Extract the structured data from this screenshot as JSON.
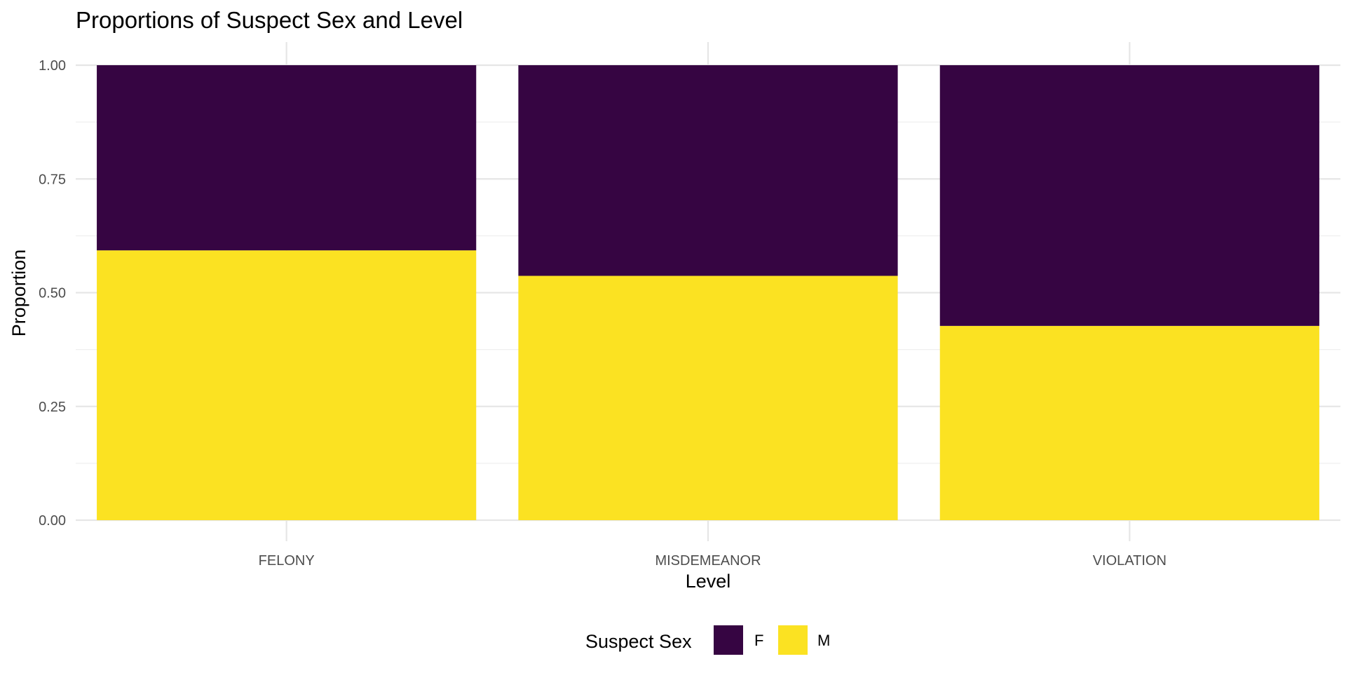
{
  "chart_data": {
    "type": "bar",
    "stacked": true,
    "title": "Proportions of Suspect Sex and Level",
    "xlabel": "Level",
    "ylabel": "Proportion",
    "categories": [
      "FELONY",
      "MISDEMEANOR",
      "VIOLATION"
    ],
    "ylim": [
      0,
      1
    ],
    "yticks": [
      0,
      0.25,
      0.5,
      0.75,
      1
    ],
    "ytick_labels": [
      "0.00",
      "0.25",
      "0.50",
      "0.75",
      "1.00"
    ],
    "grid": true,
    "legend": {
      "title": "Suspect Sex",
      "position": "bottom"
    },
    "series": [
      {
        "name": "F",
        "color": "#360542",
        "values": [
          0.407,
          0.463,
          0.573
        ]
      },
      {
        "name": "M",
        "color": "#FBE222",
        "values": [
          0.593,
          0.537,
          0.427
        ]
      }
    ],
    "stack_order": [
      "M",
      "F"
    ]
  }
}
